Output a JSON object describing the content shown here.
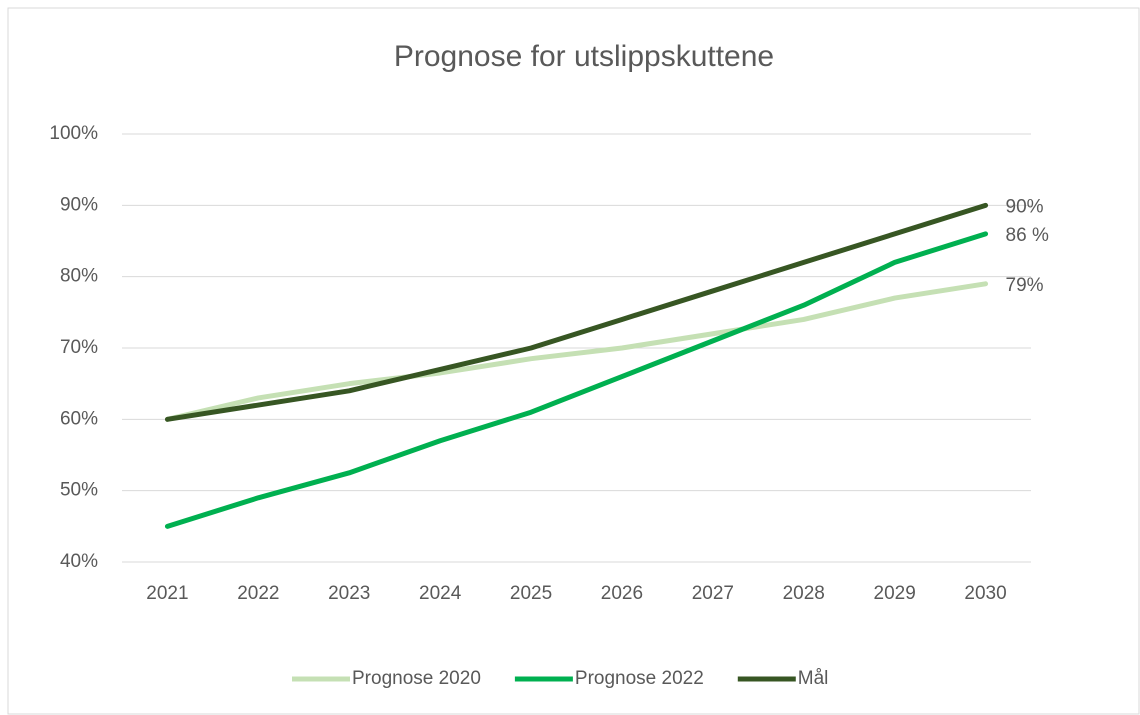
{
  "chart_data": {
    "type": "line",
    "title": "Prognose for utslippskuttene",
    "categories": [
      "2021",
      "2022",
      "2023",
      "2024",
      "2025",
      "2026",
      "2027",
      "2028",
      "2029",
      "2030"
    ],
    "series": [
      {
        "name": "Prognose 2020",
        "color": "#c5e0b4",
        "values": [
          60,
          63,
          65,
          66.5,
          68.5,
          70,
          72,
          74,
          77,
          79
        ],
        "value_labels": [
          null,
          null,
          null,
          null,
          null,
          null,
          null,
          null,
          null,
          "79%"
        ]
      },
      {
        "name": "Prognose 2022",
        "color": "#00b050",
        "values": [
          45,
          49,
          52.5,
          57,
          61,
          66,
          71,
          76,
          82,
          86
        ],
        "value_labels": [
          null,
          null,
          null,
          null,
          null,
          null,
          null,
          null,
          null,
          "86 %"
        ]
      },
      {
        "name": "Mål",
        "color": "#375623",
        "values": [
          60,
          62,
          64,
          67,
          70,
          74,
          78,
          82,
          86,
          90
        ],
        "value_labels": [
          null,
          null,
          null,
          null,
          null,
          null,
          null,
          null,
          null,
          "90%"
        ]
      }
    ],
    "ylim": [
      40,
      100
    ],
    "yticks": [
      {
        "value": 40,
        "label": "40%"
      },
      {
        "value": 50,
        "label": "50%"
      },
      {
        "value": 60,
        "label": "60%"
      },
      {
        "value": 70,
        "label": "70%"
      },
      {
        "value": 80,
        "label": "80%"
      },
      {
        "value": 90,
        "label": "90%"
      },
      {
        "value": 100,
        "label": "100%"
      }
    ],
    "grid": true,
    "legend": "bottom"
  }
}
